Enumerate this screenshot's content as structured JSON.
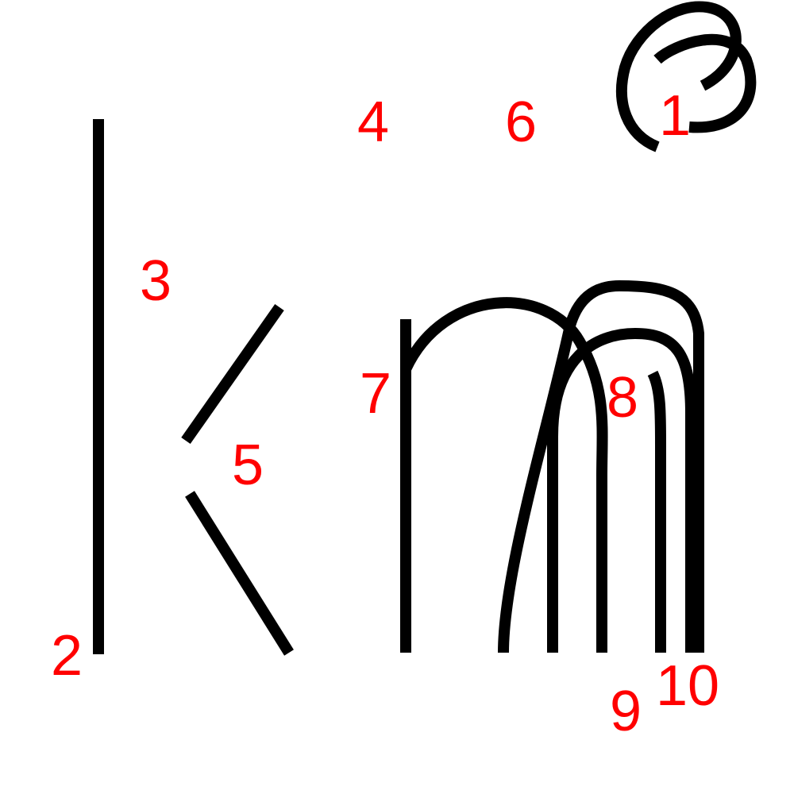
{
  "colors": {
    "stroke": "#000000",
    "label": "#ff0000",
    "background": "#ffffff"
  },
  "strokes": [
    {
      "id": "stroke-1",
      "label": "1"
    },
    {
      "id": "stroke-2",
      "label": "2"
    },
    {
      "id": "stroke-3",
      "label": "3"
    },
    {
      "id": "stroke-4",
      "label": "4"
    },
    {
      "id": "stroke-5",
      "label": "5"
    },
    {
      "id": "stroke-6",
      "label": "6"
    },
    {
      "id": "stroke-7",
      "label": "7"
    },
    {
      "id": "stroke-8",
      "label": "8"
    },
    {
      "id": "stroke-9",
      "label": "9"
    },
    {
      "id": "stroke-10",
      "label": "10"
    }
  ]
}
